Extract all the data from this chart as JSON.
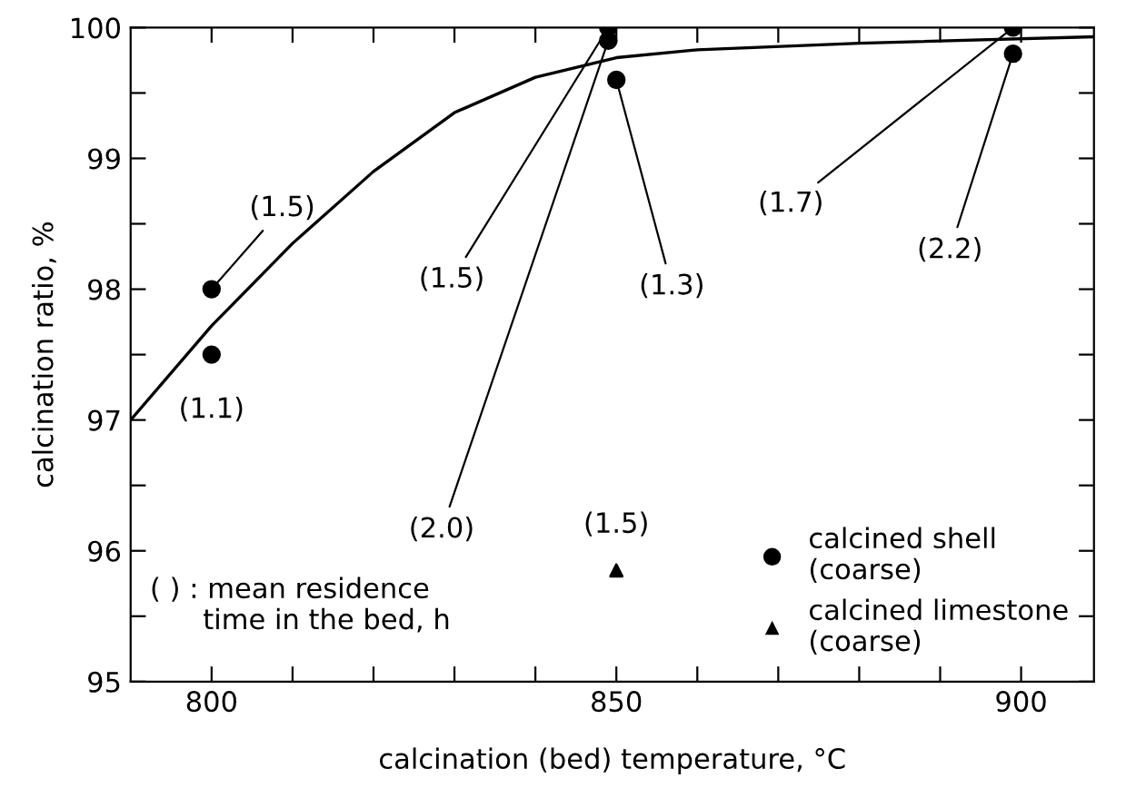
{
  "chart_data": {
    "type": "scatter",
    "xlabel": "calcination (bed) temperature, °C",
    "ylabel": "calcination ratio, %",
    "xlim": [
      790,
      909
    ],
    "ylim": [
      95,
      100
    ],
    "xticks": [
      {
        "value": 800,
        "label": "800"
      },
      {
        "value": 810,
        "label": null
      },
      {
        "value": 820,
        "label": null
      },
      {
        "value": 830,
        "label": null
      },
      {
        "value": 840,
        "label": null
      },
      {
        "value": 850,
        "label": "850"
      },
      {
        "value": 860,
        "label": null
      },
      {
        "value": 870,
        "label": null
      },
      {
        "value": 880,
        "label": null
      },
      {
        "value": 890,
        "label": null
      },
      {
        "value": 900,
        "label": "900"
      }
    ],
    "yticks": [
      95,
      {
        "value": 95.5,
        "label": null
      },
      96,
      {
        "value": 96.5,
        "label": null
      },
      97,
      {
        "value": 97.5,
        "label": null
      },
      98,
      {
        "value": 98.5,
        "label": null
      },
      99,
      {
        "value": 99.5,
        "label": null
      },
      100
    ],
    "grid": false,
    "legend": "bottom right",
    "series": [
      {
        "type": "line",
        "color": "#000000",
        "marker": "none",
        "line_style": "solid",
        "x": [
          790,
          800,
          810,
          820,
          830,
          840,
          850,
          860,
          880,
          909
        ],
        "values": [
          97.0,
          97.72,
          98.35,
          98.9,
          99.35,
          99.62,
          99.77,
          99.83,
          99.88,
          99.93
        ]
      },
      {
        "name": "calcined shell\n(coarse)",
        "color": "#000000",
        "marker": "circle",
        "x": [
          800,
          800,
          849,
          849,
          850,
          899,
          899
        ],
        "values": [
          98.0,
          97.5,
          100.0,
          99.9,
          99.6,
          100.0,
          99.8
        ]
      },
      {
        "name": "calcined limestone\n(coarse)",
        "color": "#000000",
        "marker": "triangle",
        "x": [
          850
        ],
        "values": [
          95.85
        ]
      }
    ],
    "annotations": [
      {
        "text": "(1.5)",
        "x": 800,
        "y": 98.0
      },
      {
        "text": "(1.1)",
        "x": 800,
        "y": 97.5
      },
      {
        "text": "(1.5)",
        "x": 849,
        "y": 100.0
      },
      {
        "text": "(2.0)",
        "x": 849,
        "y": 99.9
      },
      {
        "text": "(1.3)",
        "x": 850,
        "y": 99.6
      },
      {
        "text": "(1.7)",
        "x": 899,
        "y": 100.0
      },
      {
        "text": "(2.2)",
        "x": 899,
        "y": 99.8
      },
      {
        "text": "(1.5)",
        "x": 850,
        "y": 95.85
      },
      "( ) : mean residence\n      time in the bed, h"
    ]
  }
}
